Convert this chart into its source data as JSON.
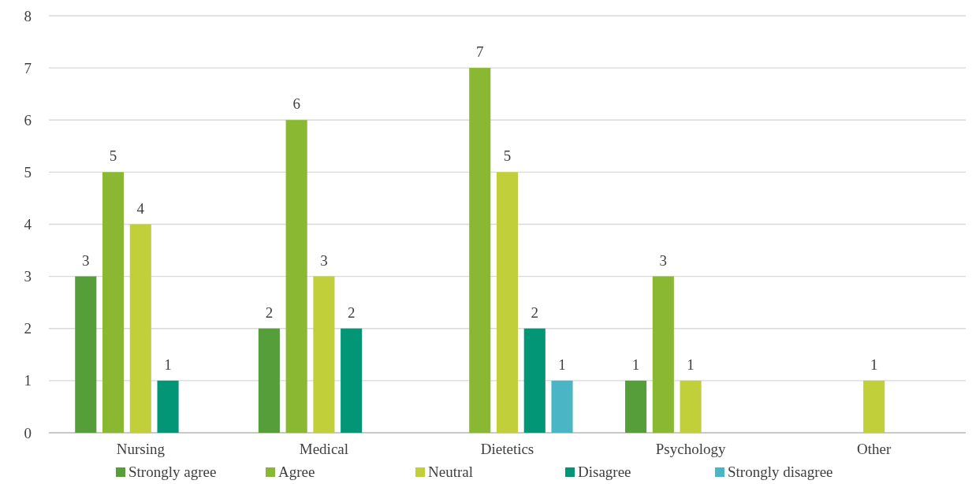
{
  "chart_data": {
    "type": "bar",
    "categories": [
      "Nursing",
      "Medical",
      "Dietetics",
      "Psychology",
      "Other"
    ],
    "series": [
      {
        "name": "Strongly agree",
        "color": "#559e3a",
        "values": [
          3,
          2,
          null,
          1,
          null
        ]
      },
      {
        "name": "Agree",
        "color": "#8ab833",
        "values": [
          5,
          6,
          7,
          3,
          null
        ]
      },
      {
        "name": "Neutral",
        "color": "#c0cf3a",
        "values": [
          4,
          3,
          5,
          1,
          1
        ]
      },
      {
        "name": "Disagree",
        "color": "#029676",
        "values": [
          1,
          2,
          2,
          null,
          null
        ]
      },
      {
        "name": "Strongly disagree",
        "color": "#4ab5c4",
        "values": [
          null,
          null,
          1,
          null,
          null
        ]
      }
    ],
    "ylim": [
      0,
      8
    ],
    "yticks": [
      0,
      1,
      2,
      3,
      4,
      5,
      6,
      7,
      8
    ],
    "grid": "y",
    "legend": "bottom",
    "data_labels": true
  }
}
